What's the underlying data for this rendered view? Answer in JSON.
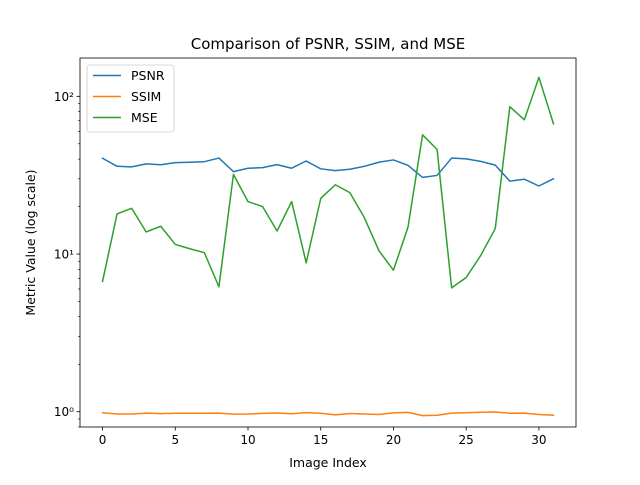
{
  "chart_data": {
    "type": "line",
    "title": "Comparison of PSNR, SSIM, and MSE",
    "xlabel": "Image Index",
    "ylabel": "Metric Value (log scale)",
    "yscale": "log",
    "xlim": [
      -1.55,
      32.55
    ],
    "ylim": [
      0.8,
      175
    ],
    "grid": false,
    "legend_position": "upper-left",
    "x_ticks": [
      0,
      5,
      10,
      15,
      20,
      25,
      30
    ],
    "y_ticks": [
      {
        "value": 1,
        "label": "10⁰"
      },
      {
        "value": 10,
        "label": "10¹"
      },
      {
        "value": 100,
        "label": "10²"
      }
    ],
    "x": [
      0,
      1,
      2,
      3,
      4,
      5,
      6,
      7,
      8,
      9,
      10,
      11,
      12,
      13,
      14,
      15,
      16,
      17,
      18,
      19,
      20,
      21,
      22,
      23,
      24,
      25,
      26,
      27,
      28,
      29,
      30,
      31
    ],
    "series": [
      {
        "name": "PSNR",
        "color": "#1f77b4",
        "values": [
          40.5,
          36.0,
          35.7,
          37.3,
          36.8,
          38.0,
          38.2,
          38.5,
          40.6,
          33.3,
          35.0,
          35.3,
          36.9,
          35.0,
          38.9,
          34.7,
          33.8,
          34.5,
          36.0,
          38.2,
          39.5,
          36.5,
          30.6,
          31.5,
          40.6,
          40.1,
          38.7,
          36.6,
          29.0,
          29.8,
          27.0,
          30.0
        ]
      },
      {
        "name": "SSIM",
        "color": "#ff7f0e",
        "values": [
          0.985,
          0.968,
          0.967,
          0.98,
          0.972,
          0.977,
          0.977,
          0.978,
          0.979,
          0.966,
          0.967,
          0.976,
          0.982,
          0.97,
          0.987,
          0.978,
          0.955,
          0.975,
          0.968,
          0.96,
          0.983,
          0.99,
          0.945,
          0.95,
          0.98,
          0.985,
          0.993,
          0.995,
          0.978,
          0.98,
          0.96,
          0.95
        ]
      },
      {
        "name": "MSE",
        "color": "#2ca02c",
        "values": [
          6.7,
          18.0,
          19.5,
          13.8,
          15.0,
          11.5,
          10.8,
          10.2,
          6.2,
          32.0,
          21.5,
          20.0,
          14.0,
          21.5,
          8.8,
          22.5,
          27.5,
          24.5,
          17.0,
          10.5,
          7.9,
          14.8,
          57.0,
          46.0,
          6.1,
          7.1,
          9.8,
          14.5,
          86.0,
          71.0,
          132.0,
          67.0
        ]
      }
    ]
  }
}
